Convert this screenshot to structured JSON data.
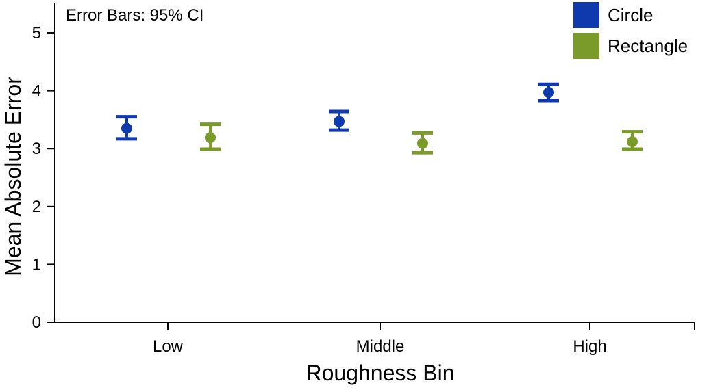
{
  "chart_data": {
    "type": "scatter",
    "subtype": "dot-plot-with-error-bars",
    "annotation": "Error Bars: 95% CI",
    "xlabel": "Roughness Bin",
    "ylabel": "Mean Absolute Error",
    "categories": [
      "Low",
      "Middle",
      "High"
    ],
    "ylim": [
      0,
      5.5
    ],
    "yticks": [
      0,
      1,
      2,
      3,
      4,
      5
    ],
    "grid": false,
    "legend_position": "top-right",
    "series": [
      {
        "name": "Circle",
        "color": "#0f3aad",
        "values": [
          3.35,
          3.47,
          3.97
        ],
        "ci_low": [
          3.17,
          3.32,
          3.83
        ],
        "ci_high": [
          3.55,
          3.64,
          4.11
        ]
      },
      {
        "name": "Rectangle",
        "color": "#7a9a2a",
        "values": [
          3.19,
          3.09,
          3.12
        ],
        "ci_low": [
          2.99,
          2.93,
          2.99
        ],
        "ci_high": [
          3.42,
          3.27,
          3.29
        ]
      }
    ]
  }
}
